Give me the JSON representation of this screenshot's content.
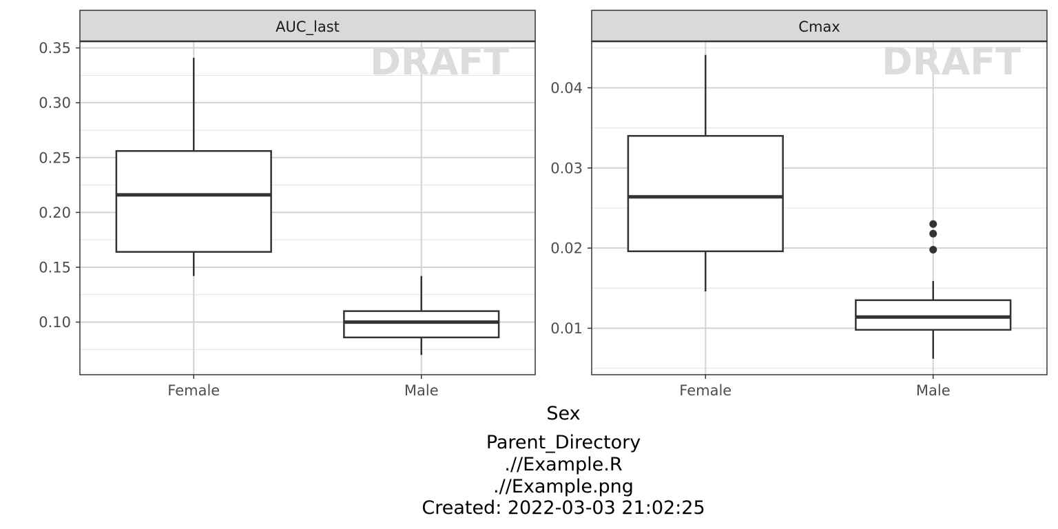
{
  "chart_data": {
    "type": "box",
    "facet_variable": "Sex",
    "xlabel": "Sex",
    "categories": [
      "Female",
      "Male"
    ],
    "watermark": "DRAFT",
    "caption_lines": [
      "Parent_Directory",
      ".//Example.R",
      ".//Example.png",
      "Created: 2022-03-03 21:02:25"
    ],
    "grid": true,
    "colors": {
      "strip_fill": "#d9d9d9",
      "box_stroke": "#333333",
      "grid_major": "#d3d3d3",
      "grid_minor": "#e3e3e3",
      "watermark": "#dcdcdc"
    },
    "panels": [
      {
        "title": "AUC_last",
        "ylim": [
          0.052,
          0.356
        ],
        "yticks": [
          0.1,
          0.15,
          0.2,
          0.25,
          0.3,
          0.35
        ],
        "ytick_labels": [
          "0.10",
          "0.15",
          "0.20",
          "0.25",
          "0.30",
          "0.35"
        ],
        "boxes": [
          {
            "category": "Female",
            "whisker_low": 0.142,
            "q1": 0.164,
            "median": 0.216,
            "q3": 0.256,
            "whisker_high": 0.341,
            "outliers": []
          },
          {
            "category": "Male",
            "whisker_low": 0.07,
            "q1": 0.086,
            "median": 0.1,
            "q3": 0.11,
            "whisker_high": 0.142,
            "outliers": []
          }
        ]
      },
      {
        "title": "Cmax",
        "ylim": [
          0.0042,
          0.0458
        ],
        "yticks": [
          0.01,
          0.02,
          0.03,
          0.04
        ],
        "ytick_labels": [
          "0.01",
          "0.02",
          "0.03",
          "0.04"
        ],
        "boxes": [
          {
            "category": "Female",
            "whisker_low": 0.0146,
            "q1": 0.0196,
            "median": 0.0264,
            "q3": 0.034,
            "whisker_high": 0.0441,
            "outliers": []
          },
          {
            "category": "Male",
            "whisker_low": 0.0062,
            "q1": 0.0098,
            "median": 0.0114,
            "q3": 0.0135,
            "whisker_high": 0.0159,
            "outliers": [
              0.0198,
              0.0218,
              0.023
            ]
          }
        ]
      }
    ]
  }
}
